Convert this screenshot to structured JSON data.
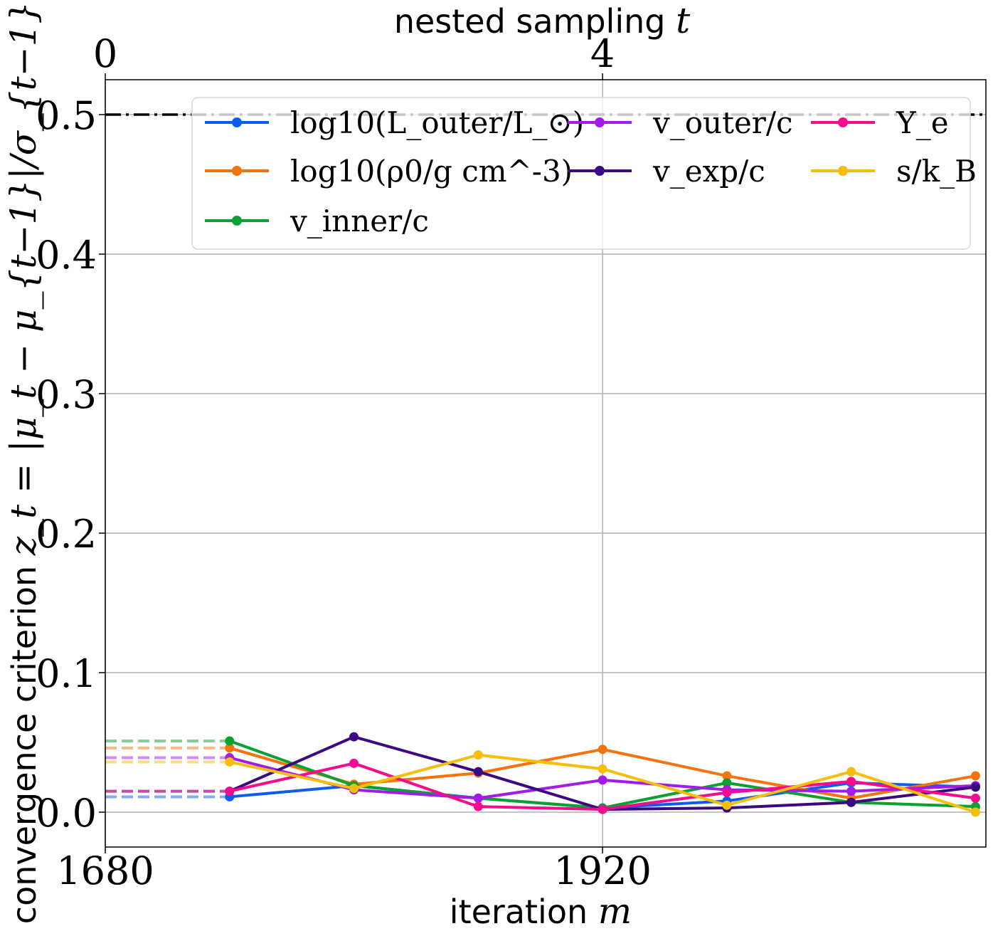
{
  "chart_data": {
    "type": "line",
    "title": "",
    "xlabel": "iteration",
    "xlabel_symbol": "m",
    "ylabel": "convergence criterion",
    "ylabel_formula": "z_t = |μ_t − μ_{t−1}|/σ_{t−1}",
    "top_xlabel": "nested sampling",
    "top_xlabel_symbol": "t",
    "xlim": [
      1680,
      2105
    ],
    "ylim": [
      -0.025,
      0.525
    ],
    "xticks": [
      "1680",
      "1920"
    ],
    "xtick_values": [
      1680,
      1920
    ],
    "top_xticks": [
      "0",
      "4"
    ],
    "top_xtick_values": [
      1680,
      1920
    ],
    "yticks": [
      "0.0",
      "0.1",
      "0.2",
      "0.3",
      "0.4",
      "0.5"
    ],
    "ytick_values": [
      0.0,
      0.1,
      0.2,
      0.3,
      0.4,
      0.5
    ],
    "grid": true,
    "threshold": 0.5,
    "x": [
      1740,
      1800,
      1860,
      1920,
      1980,
      2040,
      2100
    ],
    "legend_position": "top-right",
    "series": [
      {
        "name": "log10(L_outer/L_⊙)",
        "color": "#0b5cf0",
        "values": [
          0.011,
          0.019,
          0.01,
          0.003,
          0.008,
          0.021,
          0.018
        ]
      },
      {
        "name": "log10(ρ0/g cm^-3)",
        "color": "#f5730c",
        "values": [
          0.046,
          0.02,
          0.028,
          0.045,
          0.026,
          0.01,
          0.026
        ]
      },
      {
        "name": "v_inner/c",
        "color": "#0aa032",
        "values": [
          0.051,
          0.019,
          0.01,
          0.003,
          0.021,
          0.007,
          0.004
        ]
      },
      {
        "name": "v_outer/c",
        "color": "#a11ce8",
        "values": [
          0.039,
          0.016,
          0.01,
          0.023,
          0.016,
          0.015,
          0.019
        ]
      },
      {
        "name": "v_exp/c",
        "color": "#3b0a82",
        "values": [
          0.015,
          0.054,
          0.029,
          0.002,
          0.003,
          0.007,
          0.018
        ]
      },
      {
        "name": "Y_e",
        "color": "#f70a8c",
        "values": [
          0.015,
          0.035,
          0.004,
          0.002,
          0.014,
          0.022,
          0.01
        ]
      },
      {
        "name": "s/k_B",
        "color": "#f5be0a",
        "values": [
          0.036,
          0.017,
          0.041,
          0.031,
          0.005,
          0.029,
          0.0
        ]
      }
    ]
  }
}
